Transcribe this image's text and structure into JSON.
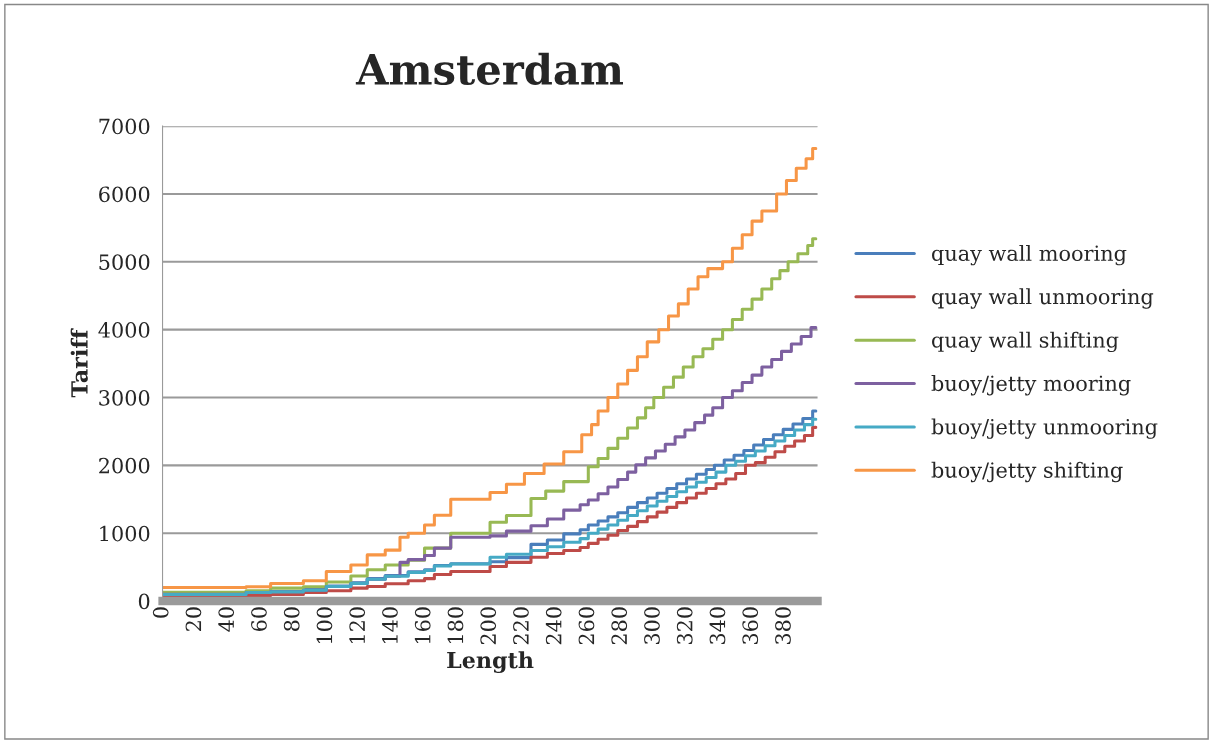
{
  "chart_data": {
    "type": "step",
    "title": "Amsterdam",
    "xlabel": "Length",
    "ylabel": "Tariff",
    "xlim": [
      0,
      400
    ],
    "xticks": [
      0,
      20,
      40,
      60,
      80,
      100,
      120,
      140,
      160,
      180,
      200,
      220,
      240,
      260,
      280,
      300,
      320,
      340,
      360,
      380
    ],
    "ylim": [
      0,
      7000
    ],
    "yticks": [
      0,
      1000,
      2000,
      3000,
      4000,
      5000,
      6000,
      7000
    ],
    "grid": "y",
    "legend": "right",
    "marker": "none",
    "line_style": "solid",
    "series": [
      {
        "name": "quay wall mooring",
        "color": "#4a7ebb",
        "x": [
          0,
          51,
          66,
          86,
          100,
          115,
          125,
          136,
          150,
          160,
          166,
          176,
          200,
          210,
          225,
          235,
          245,
          255,
          260,
          266,
          272,
          278,
          284,
          290,
          296,
          302,
          308,
          314,
          320,
          326,
          332,
          337,
          343,
          349,
          355,
          361,
          367,
          373,
          379,
          385,
          391,
          397,
          399
        ],
        "values": [
          110,
          130,
          140,
          170,
          220,
          270,
          330,
          375,
          430,
          460,
          525,
          550,
          580,
          640,
          835,
          900,
          990,
          1050,
          1120,
          1180,
          1240,
          1300,
          1380,
          1450,
          1520,
          1590,
          1660,
          1730,
          1800,
          1870,
          1940,
          2000,
          2080,
          2150,
          2220,
          2300,
          2380,
          2450,
          2530,
          2610,
          2690,
          2800,
          2800
        ]
      },
      {
        "name": "quay wall unmooring",
        "color": "#be4b48",
        "x": [
          0,
          51,
          66,
          86,
          100,
          115,
          125,
          136,
          150,
          160,
          166,
          176,
          200,
          210,
          225,
          235,
          245,
          255,
          260,
          266,
          272,
          278,
          284,
          290,
          296,
          302,
          308,
          314,
          320,
          326,
          332,
          338,
          344,
          350,
          356,
          362,
          368,
          374,
          380,
          386,
          392,
          397,
          399
        ],
        "values": [
          50,
          80,
          95,
          125,
          150,
          190,
          215,
          255,
          300,
          330,
          390,
          435,
          510,
          570,
          645,
          700,
          745,
          790,
          850,
          910,
          970,
          1040,
          1100,
          1170,
          1240,
          1310,
          1380,
          1450,
          1520,
          1590,
          1660,
          1730,
          1800,
          1880,
          2000,
          2040,
          2120,
          2200,
          2280,
          2360,
          2440,
          2560,
          2560
        ]
      },
      {
        "name": "quay wall shifting",
        "color": "#98b954",
        "x": [
          0,
          51,
          66,
          86,
          100,
          115,
          125,
          136,
          150,
          160,
          176,
          200,
          210,
          225,
          234,
          245,
          260,
          266,
          272,
          278,
          284,
          290,
          295,
          300,
          306,
          312,
          318,
          324,
          330,
          336,
          342,
          348,
          354,
          360,
          366,
          372,
          377,
          382,
          388,
          394,
          397,
          399
        ],
        "values": [
          130,
          150,
          190,
          210,
          280,
          370,
          460,
          530,
          600,
          780,
          1000,
          1160,
          1260,
          1510,
          1620,
          1760,
          1980,
          2100,
          2250,
          2400,
          2550,
          2700,
          2850,
          3000,
          3150,
          3300,
          3450,
          3600,
          3720,
          3860,
          4000,
          4150,
          4300,
          4450,
          4600,
          4750,
          4870,
          5000,
          5120,
          5240,
          5340,
          5340
        ]
      },
      {
        "name": "buoy/jetty mooring",
        "color": "#7d60a0",
        "x": [
          0,
          51,
          66,
          86,
          100,
          115,
          125,
          136,
          145,
          150,
          160,
          166,
          176,
          200,
          210,
          225,
          235,
          245,
          255,
          260,
          266,
          272,
          278,
          284,
          289,
          295,
          301,
          307,
          313,
          319,
          325,
          331,
          336,
          342,
          348,
          354,
          360,
          366,
          372,
          378,
          384,
          390,
          396,
          399
        ],
        "values": [
          100,
          125,
          140,
          160,
          215,
          260,
          320,
          365,
          570,
          610,
          670,
          780,
          940,
          960,
          1030,
          1110,
          1210,
          1340,
          1420,
          1490,
          1580,
          1680,
          1790,
          1900,
          2010,
          2110,
          2210,
          2310,
          2420,
          2520,
          2630,
          2740,
          2850,
          3000,
          3100,
          3220,
          3330,
          3450,
          3560,
          3680,
          3790,
          3900,
          4030,
          4030
        ]
      },
      {
        "name": "buoy/jetty unmooring",
        "color": "#46aac5",
        "x": [
          0,
          51,
          66,
          86,
          100,
          115,
          125,
          136,
          150,
          160,
          166,
          176,
          200,
          210,
          225,
          235,
          245,
          255,
          260,
          266,
          272,
          278,
          284,
          290,
          296,
          302,
          308,
          314,
          320,
          326,
          332,
          338,
          344,
          350,
          356,
          362,
          368,
          374,
          380,
          386,
          392,
          397,
          399
        ],
        "values": [
          95,
          125,
          135,
          160,
          215,
          260,
          320,
          365,
          420,
          450,
          515,
          545,
          645,
          690,
          745,
          800,
          865,
          920,
          1000,
          1060,
          1120,
          1190,
          1260,
          1330,
          1400,
          1470,
          1540,
          1610,
          1680,
          1750,
          1820,
          1900,
          2000,
          2060,
          2140,
          2210,
          2290,
          2360,
          2440,
          2520,
          2600,
          2680,
          2680
        ]
      },
      {
        "name": "buoy/jetty shifting",
        "color": "#f79646",
        "x": [
          0,
          51,
          66,
          86,
          100,
          115,
          125,
          136,
          145,
          150,
          160,
          166,
          176,
          200,
          210,
          221,
          233,
          245,
          256,
          262,
          266,
          272,
          278,
          284,
          290,
          296,
          303,
          309,
          315,
          321,
          327,
          333,
          342,
          348,
          354,
          360,
          366,
          375,
          381,
          387,
          393,
          397,
          399
        ],
        "values": [
          200,
          210,
          257,
          300,
          435,
          530,
          680,
          750,
          940,
          1000,
          1120,
          1265,
          1500,
          1600,
          1720,
          1880,
          2020,
          2200,
          2450,
          2600,
          2800,
          3000,
          3200,
          3400,
          3600,
          3820,
          4000,
          4200,
          4380,
          4600,
          4780,
          4900,
          5000,
          5200,
          5400,
          5600,
          5750,
          6000,
          6200,
          6380,
          6520,
          6670,
          6670
        ]
      }
    ]
  }
}
